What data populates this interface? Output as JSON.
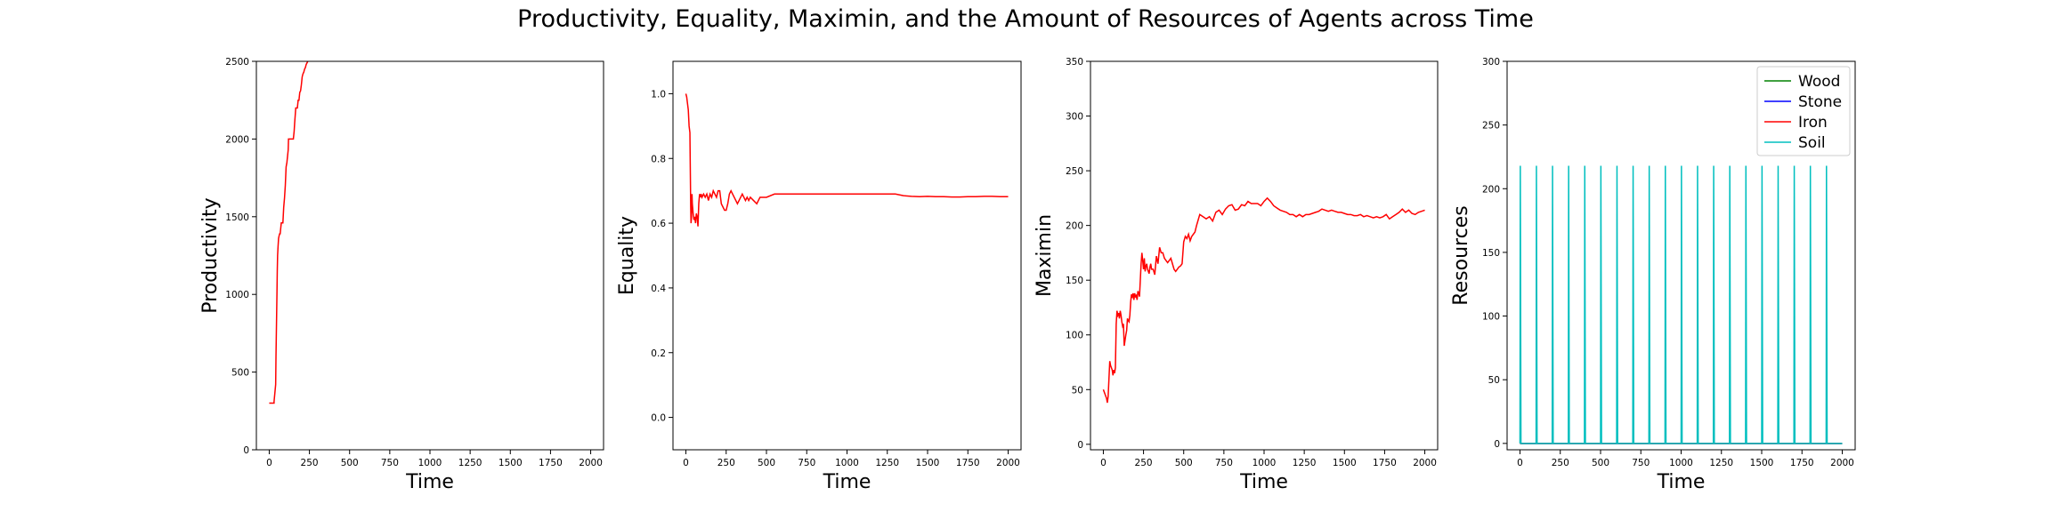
{
  "suptitle": "Productivity, Equality, Maximin, and the Amount of Resources of Agents across Time",
  "chart_data": [
    {
      "type": "line",
      "title": "",
      "xlabel": "Time",
      "ylabel": "Productivity",
      "xlim": [
        -80,
        2080
      ],
      "ylim": [
        0,
        2500
      ],
      "xticks": [
        0,
        250,
        500,
        750,
        1000,
        1250,
        1500,
        1750,
        2000
      ],
      "yticks": [
        0,
        500,
        1000,
        1500,
        2000,
        2500
      ],
      "grid": false,
      "series": [
        {
          "color": "#ff0000",
          "x": [
            0,
            30,
            30,
            40,
            42,
            45,
            48,
            50,
            52,
            55,
            58,
            62,
            65,
            68,
            72,
            75,
            80,
            85,
            90,
            95,
            100,
            105,
            110,
            118,
            120,
            125,
            130,
            135,
            140,
            145,
            150,
            155,
            158,
            165,
            170,
            175,
            180,
            185,
            190,
            195,
            200,
            205,
            210,
            215,
            220,
            225,
            230,
            235,
            240,
            245,
            250
          ],
          "y": [
            300,
            300,
            310,
            420,
            600,
            800,
            1000,
            1150,
            1250,
            1310,
            1360,
            1380,
            1390,
            1390,
            1430,
            1460,
            1460,
            1460,
            1560,
            1620,
            1700,
            1820,
            1850,
            1930,
            2000,
            2000,
            2000,
            2000,
            2000,
            2000,
            2000,
            2050,
            2100,
            2200,
            2200,
            2200,
            2250,
            2250,
            2300,
            2310,
            2350,
            2400,
            2420,
            2430,
            2450,
            2460,
            2480,
            2490,
            2500,
            2520,
            2540
          ]
        }
      ]
    },
    {
      "type": "line",
      "title": "",
      "xlabel": "Time",
      "ylabel": "Equality",
      "xlim": [
        -80,
        2080
      ],
      "ylim": [
        -0.1,
        1.1
      ],
      "xticks": [
        0,
        250,
        500,
        750,
        1000,
        1250,
        1500,
        1750,
        2000
      ],
      "yticks": [
        0.0,
        0.2,
        0.4,
        0.6,
        0.8,
        1.0
      ],
      "ytick_labels": [
        "0.0",
        "0.2",
        "0.4",
        "0.6",
        "0.8",
        "1.0"
      ],
      "grid": false,
      "series": [
        {
          "color": "#ff0000",
          "x": [
            0,
            5,
            10,
            15,
            20,
            25,
            30,
            32,
            35,
            38,
            40,
            45,
            50,
            55,
            60,
            65,
            70,
            75,
            80,
            85,
            90,
            95,
            100,
            110,
            120,
            130,
            140,
            150,
            160,
            170,
            180,
            190,
            200,
            210,
            220,
            230,
            240,
            250,
            260,
            270,
            280,
            290,
            300,
            310,
            320,
            330,
            340,
            350,
            360,
            370,
            380,
            390,
            400,
            420,
            440,
            460,
            480,
            500,
            550,
            600,
            650,
            700,
            750,
            800,
            850,
            900,
            950,
            1000,
            1050,
            1100,
            1150,
            1200,
            1250,
            1300,
            1350,
            1400,
            1450,
            1500,
            1550,
            1600,
            1650,
            1700,
            1750,
            1800,
            1850,
            1900,
            1950,
            2000
          ],
          "y": [
            1.0,
            0.99,
            0.97,
            0.95,
            0.9,
            0.88,
            0.65,
            0.6,
            0.62,
            0.69,
            0.66,
            0.63,
            0.61,
            0.62,
            0.6,
            0.63,
            0.62,
            0.59,
            0.66,
            0.69,
            0.68,
            0.69,
            0.68,
            0.69,
            0.68,
            0.69,
            0.67,
            0.69,
            0.68,
            0.7,
            0.69,
            0.68,
            0.7,
            0.7,
            0.66,
            0.65,
            0.64,
            0.64,
            0.66,
            0.69,
            0.7,
            0.69,
            0.68,
            0.67,
            0.66,
            0.67,
            0.68,
            0.69,
            0.68,
            0.67,
            0.68,
            0.67,
            0.68,
            0.67,
            0.66,
            0.68,
            0.68,
            0.68,
            0.69,
            0.69,
            0.69,
            0.69,
            0.69,
            0.69,
            0.69,
            0.69,
            0.69,
            0.69,
            0.69,
            0.69,
            0.69,
            0.69,
            0.69,
            0.69,
            0.685,
            0.683,
            0.682,
            0.683,
            0.682,
            0.682,
            0.681,
            0.681,
            0.682,
            0.682,
            0.683,
            0.683,
            0.682,
            0.682
          ]
        }
      ]
    },
    {
      "type": "line",
      "title": "",
      "xlabel": "Time",
      "ylabel": "Maximin",
      "xlim": [
        -80,
        2080
      ],
      "ylim": [
        -5,
        350
      ],
      "xticks": [
        0,
        250,
        500,
        750,
        1000,
        1250,
        1500,
        1750,
        2000
      ],
      "yticks": [
        0,
        50,
        100,
        150,
        200,
        250,
        300,
        350
      ],
      "grid": false,
      "series": [
        {
          "color": "#ff0000",
          "x": [
            0,
            10,
            20,
            25,
            30,
            35,
            40,
            45,
            50,
            55,
            60,
            65,
            70,
            75,
            80,
            85,
            90,
            95,
            100,
            105,
            110,
            115,
            120,
            125,
            130,
            135,
            140,
            145,
            150,
            155,
            160,
            165,
            170,
            175,
            180,
            185,
            190,
            195,
            200,
            205,
            210,
            215,
            220,
            225,
            230,
            235,
            240,
            245,
            250,
            255,
            260,
            265,
            270,
            275,
            280,
            285,
            290,
            295,
            300,
            310,
            320,
            330,
            340,
            350,
            360,
            370,
            380,
            390,
            400,
            410,
            420,
            430,
            440,
            450,
            460,
            470,
            480,
            490,
            500,
            510,
            520,
            530,
            540,
            550,
            560,
            570,
            580,
            590,
            600,
            620,
            640,
            660,
            680,
            700,
            720,
            740,
            760,
            780,
            800,
            820,
            840,
            860,
            880,
            900,
            920,
            940,
            960,
            980,
            1000,
            1020,
            1040,
            1060,
            1080,
            1100,
            1120,
            1140,
            1160,
            1180,
            1200,
            1220,
            1240,
            1260,
            1280,
            1300,
            1320,
            1340,
            1360,
            1380,
            1400,
            1420,
            1440,
            1460,
            1480,
            1500,
            1520,
            1540,
            1560,
            1580,
            1600,
            1620,
            1640,
            1660,
            1680,
            1700,
            1720,
            1740,
            1760,
            1780,
            1800,
            1820,
            1840,
            1860,
            1880,
            1900,
            1920,
            1940,
            1960,
            1980,
            2000
          ],
          "y": [
            50,
            46,
            42,
            38,
            44,
            60,
            76,
            72,
            70,
            68,
            63,
            68,
            65,
            70,
            110,
            122,
            118,
            120,
            115,
            122,
            118,
            112,
            108,
            110,
            90,
            95,
            100,
            104,
            115,
            113,
            112,
            118,
            130,
            137,
            135,
            138,
            132,
            138,
            135,
            136,
            132,
            140,
            138,
            135,
            150,
            165,
            175,
            168,
            160,
            170,
            158,
            163,
            165,
            160,
            158,
            156,
            162,
            165,
            160,
            160,
            155,
            172,
            165,
            180,
            175,
            175,
            170,
            168,
            166,
            168,
            170,
            165,
            160,
            158,
            160,
            162,
            163,
            165,
            185,
            190,
            188,
            192,
            186,
            190,
            192,
            194,
            200,
            205,
            210,
            208,
            206,
            208,
            204,
            212,
            214,
            210,
            215,
            218,
            219,
            214,
            215,
            219,
            218,
            222,
            220,
            220,
            220,
            218,
            222,
            225,
            222,
            218,
            216,
            214,
            213,
            212,
            210,
            210,
            208,
            210,
            208,
            210,
            210,
            211,
            212,
            213,
            215,
            214,
            213,
            214,
            213,
            212,
            212,
            211,
            210,
            210,
            209,
            209,
            210,
            208,
            209,
            208,
            207,
            208,
            207,
            208,
            210,
            206,
            208,
            210,
            212,
            215,
            212,
            214,
            211,
            210,
            212,
            213,
            214
          ]
        }
      ]
    },
    {
      "type": "line",
      "title": "",
      "xlabel": "Time",
      "ylabel": "Resources",
      "xlim": [
        -80,
        2080
      ],
      "ylim": [
        -5,
        300
      ],
      "xticks": [
        0,
        250,
        500,
        750,
        1000,
        1250,
        1500,
        1750,
        2000
      ],
      "yticks": [
        0,
        50,
        100,
        150,
        200,
        250,
        300
      ],
      "grid": false,
      "legend": "top-right",
      "spike_peak": 218,
      "spike_times": [
        0,
        100,
        200,
        300,
        400,
        500,
        600,
        700,
        800,
        900,
        1000,
        1100,
        1200,
        1300,
        1400,
        1500,
        1600,
        1700,
        1800,
        1900
      ],
      "series": [
        {
          "name": "Wood",
          "color": "#008000",
          "x": [
            0,
            2000
          ],
          "y": [
            0,
            0
          ]
        },
        {
          "name": "Stone",
          "color": "#0000ff",
          "x": [
            0,
            2000
          ],
          "y": [
            0,
            0
          ]
        },
        {
          "name": "Iron",
          "color": "#ff0000",
          "x": [
            0,
            2000
          ],
          "y": [
            0,
            0
          ]
        },
        {
          "name": "Soil",
          "color": "#00bfbf",
          "pattern": "spikes",
          "x": [
            0,
            2000
          ],
          "y": [
            0,
            0
          ]
        }
      ]
    }
  ]
}
